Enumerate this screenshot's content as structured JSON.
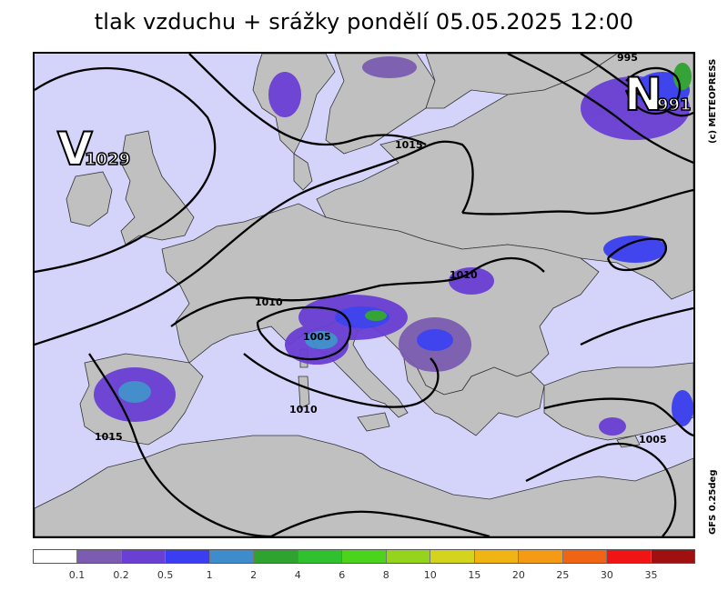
{
  "title": "tlak vzduchu + srážky pondělí 05.05.2025 12:00",
  "credit": "(c) METEOPRESS",
  "model": "GFS  0.25deg",
  "pressure_centers": [
    {
      "type": "V",
      "value": "1029"
    },
    {
      "type": "N",
      "value": "991"
    }
  ],
  "isobar_labels": [
    "995",
    "1015",
    "1010",
    "1010",
    "1005",
    "1010",
    "1015",
    "1005"
  ],
  "legend": {
    "colors": [
      "#ffffff",
      "#7b5cb0",
      "#6a3fd4",
      "#3a3ef0",
      "#3d8ccc",
      "#2fa22f",
      "#2fc12f",
      "#4cd41c",
      "#94d41c",
      "#d4d41c",
      "#f0b414",
      "#f49a14",
      "#f06414",
      "#f01414",
      "#a01010"
    ],
    "ticks": [
      "0.1",
      "0.2",
      "0.5",
      "1",
      "2",
      "4",
      "6",
      "8",
      "10",
      "15",
      "20",
      "25",
      "30",
      "35"
    ]
  },
  "colors": {
    "sea": "#d4d4fb",
    "land": "#c0c0c0",
    "isobar": "#000000"
  }
}
